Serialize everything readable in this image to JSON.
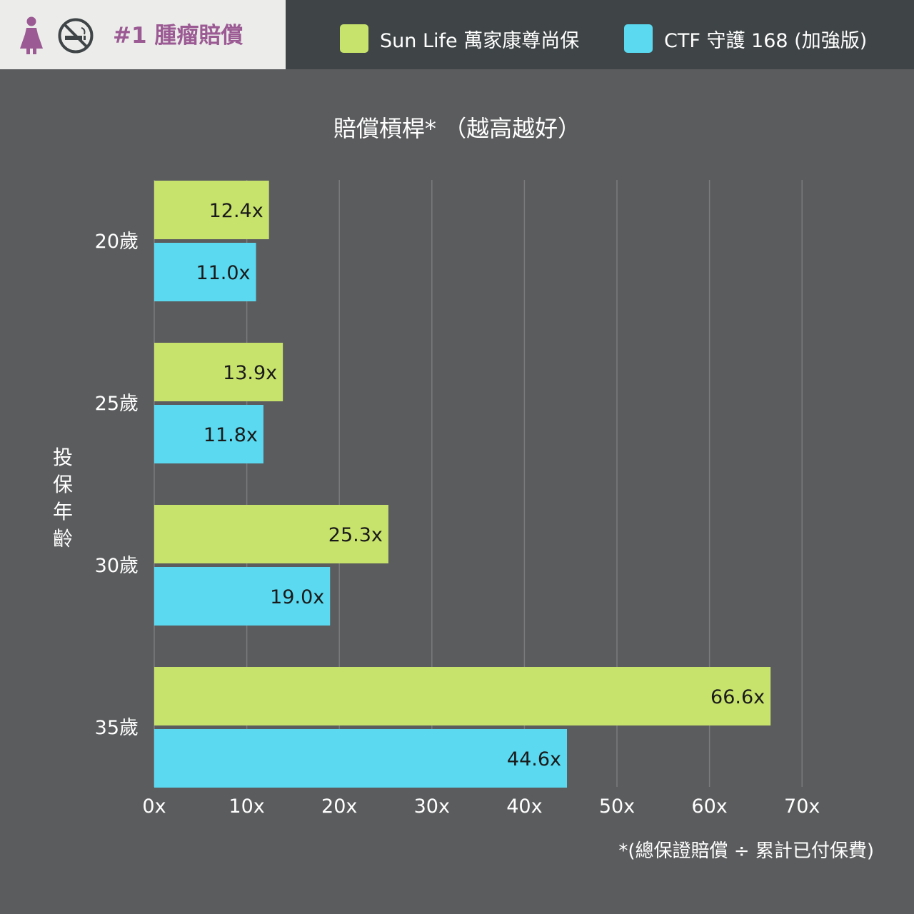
{
  "header": {
    "tag_title": "#1 腫瘤賠償",
    "female_icon": "female-person-icon",
    "no_smoking_icon": "no-smoking-icon"
  },
  "legend": [
    {
      "label": "Sun Life 萬家康尊尚保",
      "color": "#c8e36c"
    },
    {
      "label": "CTF 守護 168 (加強版)",
      "color": "#5ad9f0"
    }
  ],
  "colors": {
    "background": "#5b5c5e",
    "header_background": "#3f4446",
    "tag_background": "#ecedeb",
    "tag_text": "#9b5a93",
    "gridline": "#7a7b7d"
  },
  "chart_data": {
    "type": "bar",
    "orientation": "horizontal",
    "title": "賠償槓桿* （越高越好）",
    "ylabel": "投保年齡",
    "xlabel": "",
    "categories": [
      "20歲",
      "25歲",
      "30歲",
      "35歲"
    ],
    "series": [
      {
        "name": "Sun Life 萬家康尊尚保",
        "values": [
          12.4,
          13.9,
          25.3,
          66.6
        ],
        "labels": [
          "12.4x",
          "13.9x",
          "25.3x",
          "66.6x"
        ]
      },
      {
        "name": "CTF 守護 168 (加強版)",
        "values": [
          11.0,
          11.8,
          19.0,
          44.6
        ],
        "labels": [
          "11.0x",
          "11.8x",
          "19.0x",
          "44.6x"
        ]
      }
    ],
    "xlim": [
      0,
      70
    ],
    "xticks": [
      0,
      10,
      20,
      30,
      40,
      50,
      60,
      70
    ],
    "xtick_labels": [
      "0x",
      "10x",
      "20x",
      "30x",
      "40x",
      "50x",
      "60x",
      "70x"
    ],
    "grid": true,
    "legend_position": "top-right",
    "footnote": "*(總保證賠償 ÷ 累計已付保費)"
  }
}
